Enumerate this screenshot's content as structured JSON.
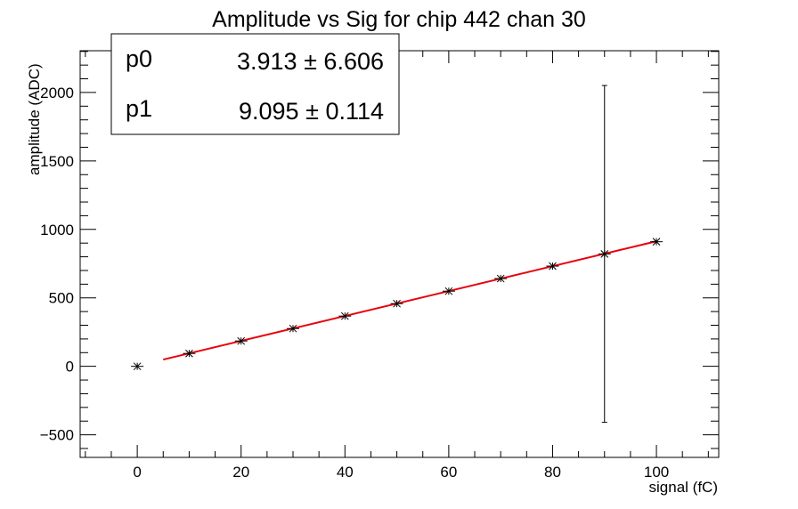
{
  "chart_data": {
    "type": "scatter",
    "title": "Amplitude vs Sig for chip 442 chan 30",
    "xlabel": "signal (fC)",
    "ylabel": "amplitude (ADC)",
    "xlim": [
      -11,
      112
    ],
    "ylim": [
      -665,
      2305
    ],
    "x_ticks": [
      0,
      20,
      40,
      60,
      80,
      100
    ],
    "y_ticks": [
      -500,
      0,
      500,
      1000,
      1500,
      2000
    ],
    "grid": false,
    "legend": "top-left",
    "series": [
      {
        "points": [
          {
            "x": 0,
            "y": 0,
            "err": 5
          },
          {
            "x": 10,
            "y": 94,
            "err": 5
          },
          {
            "x": 20,
            "y": 185,
            "err": 5
          },
          {
            "x": 30,
            "y": 276,
            "err": 5
          },
          {
            "x": 40,
            "y": 367,
            "err": 5
          },
          {
            "x": 50,
            "y": 458,
            "err": 5
          },
          {
            "x": 60,
            "y": 549,
            "err": 5
          },
          {
            "x": 70,
            "y": 641,
            "err": 5
          },
          {
            "x": 80,
            "y": 732,
            "err": 5
          },
          {
            "x": 90,
            "y": 821,
            "err": 1230
          },
          {
            "x": 100,
            "y": 910,
            "err": 5
          }
        ],
        "x_err": 1.2,
        "color": "#000000"
      }
    ],
    "fit": {
      "p0": 3.913,
      "p1": 9.095,
      "x_range": [
        5,
        100
      ],
      "color": "#e8000b"
    },
    "stats": [
      {
        "name": "p0",
        "value": "3.913",
        "error": "6.606"
      },
      {
        "name": "p1",
        "value": "9.095",
        "error": "0.114"
      }
    ],
    "pm_symbol": "±"
  }
}
